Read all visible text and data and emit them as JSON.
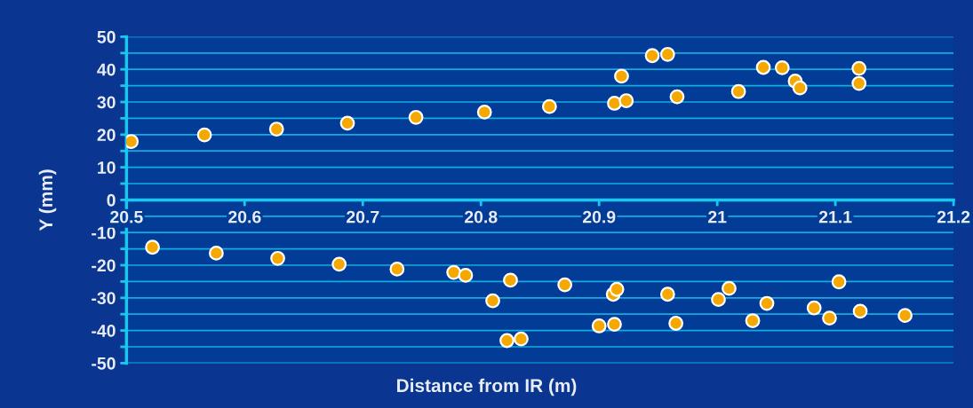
{
  "chart_data": {
    "type": "scatter",
    "xlabel": "Distance from IR (m)",
    "ylabel": "Y (mm)",
    "xlim": [
      20.5,
      21.2
    ],
    "xticks": [
      20.5,
      20.6,
      20.7,
      20.8,
      20.9,
      {
        "value": 21,
        "label": "21"
      },
      21.1,
      21.2
    ],
    "ylim": [
      -50,
      50
    ],
    "yticks": [
      -50,
      {
        "value": -45,
        "label": null
      },
      -40,
      {
        "value": -35,
        "label": null
      },
      -30,
      {
        "value": -25,
        "label": null
      },
      -20,
      {
        "value": -15,
        "label": null
      },
      -10,
      {
        "value": -5,
        "label": null
      },
      0,
      {
        "value": 5,
        "label": null
      },
      10,
      {
        "value": 15,
        "label": null
      },
      20,
      {
        "value": 25,
        "label": null
      },
      30,
      {
        "value": 35,
        "label": null
      },
      40,
      {
        "value": 45,
        "label": null
      },
      50
    ],
    "grid": "y",
    "marker": "circle",
    "series": [
      {
        "color": "#f5a800",
        "x": [
          20.504,
          20.566,
          20.627,
          20.687,
          20.745,
          20.803,
          20.858,
          20.913,
          20.923,
          20.919,
          20.945,
          20.958,
          20.966,
          21.018,
          21.039,
          21.055,
          21.066,
          21.07,
          21.12,
          21.12
        ],
        "values": [
          17.9,
          19.9,
          21.7,
          23.5,
          25.3,
          26.9,
          28.6,
          29.6,
          30.4,
          37.9,
          44.2,
          44.6,
          31.6,
          33.2,
          40.6,
          40.5,
          36.4,
          34.3,
          40.3,
          35.7
        ]
      },
      {
        "color": "#f5a800",
        "x": [
          20.522,
          20.576,
          20.628,
          20.68,
          20.729,
          20.777,
          20.787,
          20.825,
          20.81,
          20.822,
          20.834,
          20.871,
          20.912,
          20.915,
          20.9,
          20.913,
          20.958,
          20.965,
          21.001,
          21.01,
          21.03,
          21.042,
          21.082,
          21.095,
          21.103,
          21.121,
          21.159
        ],
        "values": [
          -14.5,
          -16.3,
          -17.9,
          -19.7,
          -21.2,
          -22.2,
          -23.1,
          -24.6,
          -30.9,
          -43.1,
          -42.6,
          -26.0,
          -28.9,
          -27.4,
          -38.6,
          -38.1,
          -28.9,
          -37.8,
          -30.5,
          -27.1,
          -37.0,
          -31.7,
          -33.1,
          -36.2,
          -25.1,
          -34.1,
          -35.4
        ]
      }
    ]
  }
}
